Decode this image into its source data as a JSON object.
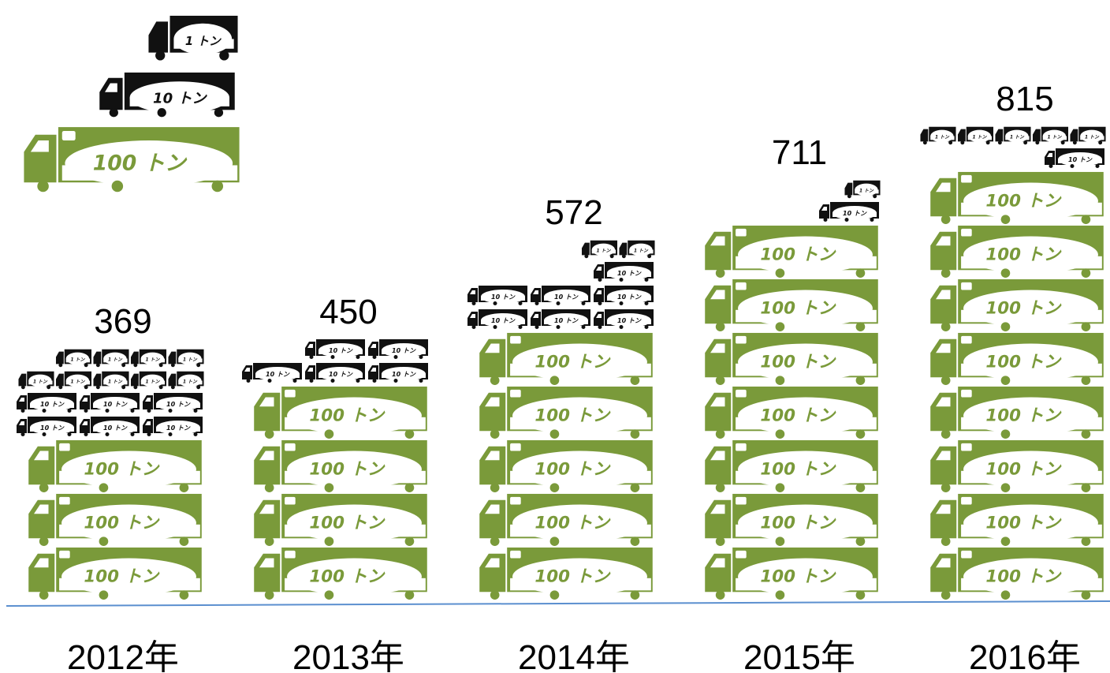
{
  "chart_data": {
    "type": "bar",
    "title": "",
    "xlabel": "",
    "ylabel": "",
    "categories": [
      "2012年",
      "2013年",
      "2014年",
      "2015年",
      "2016年"
    ],
    "values": [
      369,
      450,
      572,
      711,
      815
    ],
    "unit_labels": {
      "big": "100 トン",
      "medium": "10 トン",
      "small": "1 トン"
    },
    "legend": [
      "100 トン",
      "10 トン",
      "1 トン"
    ],
    "colors": {
      "big_fill": "#7a9a3a",
      "big_inner": "#ffffff",
      "big_text": "#7a9a3a",
      "dark_fill": "#111111",
      "dark_text": "#111111",
      "axis_line": "#5b8fcf"
    }
  }
}
